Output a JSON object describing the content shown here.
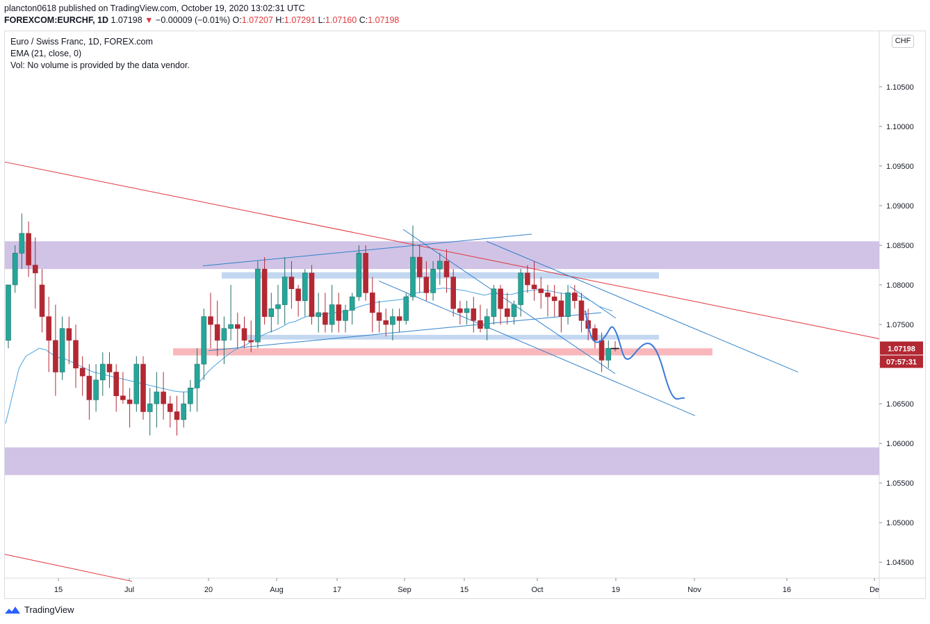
{
  "header": {
    "publisher": "plancton0618 published on TradingView.com, October 19, 2020 13:02:31 UTC",
    "symbol": "FOREXCOM:EURCHF, 1D",
    "last": "1.07198",
    "change_arrow": "▼",
    "change": "−0.00009 (−0.01%)",
    "o_label": "O:",
    "o_value": "1.07207",
    "h_label": "H:",
    "h_value": "1.07291",
    "l_label": "L:",
    "l_value": "1.07160",
    "c_label": "C:",
    "c_value": "1.07198"
  },
  "legend": {
    "title": "Euro / Swiss Franc, 1D, FOREX.com",
    "ema": "EMA (21, close, 0)",
    "volume": "Vol: No volume is provided by the data vendor."
  },
  "currency_badge": "CHF",
  "price_label": "1.07198",
  "countdown_label": "07:57:31",
  "footer": {
    "brand": "TradingView"
  },
  "colors": {
    "up": "#26a69a",
    "up_body": "#1f6e65",
    "down": "#b22833",
    "zone_purple": "#c9b8e2",
    "zone_blue": "#bcd3f0",
    "zone_red": "#f7b0b4",
    "trend_blue": "#2f80c9",
    "trend_red": "#e0343a",
    "ema": "#4aa3df"
  },
  "chart_data": {
    "type": "candlestick",
    "symbol": "EURCHF",
    "interval": "1D",
    "y_tick_labels": [
      "1.10500",
      "1.10000",
      "1.09500",
      "1.09000",
      "1.08500",
      "1.08000",
      "1.07500",
      "1.07000",
      "1.06500",
      "1.06000",
      "1.05500",
      "1.05000",
      "1.04500"
    ],
    "x_tick_labels": [
      "15",
      "Jul",
      "20",
      "Aug",
      "17",
      "Sep",
      "15",
      "Oct",
      "19",
      "Nov",
      "16",
      "De"
    ],
    "ylim": [
      1.043,
      1.112
    ],
    "candles_ohlc": [
      [
        1.073,
        1.08,
        1.072,
        1.08
      ],
      [
        1.08,
        1.085,
        1.079,
        1.084
      ],
      [
        1.084,
        1.089,
        1.082,
        1.0865
      ],
      [
        1.0865,
        1.088,
        1.081,
        1.0825
      ],
      [
        1.0825,
        1.086,
        1.077,
        1.0815
      ],
      [
        1.08,
        1.082,
        1.074,
        1.076
      ],
      [
        1.076,
        1.0785,
        1.069,
        1.073
      ],
      [
        1.073,
        1.0775,
        1.066,
        1.069
      ],
      [
        1.069,
        1.076,
        1.068,
        1.0745
      ],
      [
        1.0745,
        1.076,
        1.07,
        1.073
      ],
      [
        1.073,
        1.075,
        1.067,
        1.0695
      ],
      [
        1.0695,
        1.071,
        1.066,
        1.0685
      ],
      [
        1.0685,
        1.07,
        1.063,
        1.0655
      ],
      [
        1.0655,
        1.07,
        1.064,
        1.068
      ],
      [
        1.068,
        1.0715,
        1.066,
        1.07
      ],
      [
        1.07,
        1.0715,
        1.067,
        1.069
      ],
      [
        1.069,
        1.07,
        1.064,
        1.066
      ],
      [
        1.066,
        1.069,
        1.065,
        1.0655
      ],
      [
        1.0655,
        1.067,
        1.062,
        1.065
      ],
      [
        1.065,
        1.071,
        1.064,
        1.07
      ],
      [
        1.07,
        1.071,
        1.063,
        1.064
      ],
      [
        1.064,
        1.067,
        1.061,
        1.065
      ],
      [
        1.065,
        1.069,
        1.062,
        1.0665
      ],
      [
        1.0665,
        1.069,
        1.063,
        1.065
      ],
      [
        1.065,
        1.066,
        1.062,
        1.064
      ],
      [
        1.064,
        1.066,
        1.061,
        1.063
      ],
      [
        1.063,
        1.0665,
        1.062,
        1.065
      ],
      [
        1.065,
        1.068,
        1.064,
        1.067
      ],
      [
        1.067,
        1.072,
        1.064,
        1.07
      ],
      [
        1.07,
        1.077,
        1.068,
        1.076
      ],
      [
        1.076,
        1.079,
        1.072,
        1.075
      ],
      [
        1.075,
        1.078,
        1.071,
        1.073
      ],
      [
        1.073,
        1.076,
        1.07,
        1.0745
      ],
      [
        1.0745,
        1.08,
        1.073,
        1.075
      ],
      [
        1.075,
        1.0765,
        1.072,
        1.0745
      ],
      [
        1.0745,
        1.076,
        1.072,
        1.073
      ],
      [
        1.073,
        1.0755,
        1.0715,
        1.0728
      ],
      [
        1.0728,
        1.083,
        1.072,
        1.082
      ],
      [
        1.082,
        1.0835,
        1.075,
        1.076
      ],
      [
        1.076,
        1.079,
        1.074,
        1.077
      ],
      [
        1.077,
        1.08,
        1.075,
        1.0775
      ],
      [
        1.0775,
        1.0835,
        1.075,
        1.081
      ],
      [
        1.081,
        1.083,
        1.077,
        1.0795
      ],
      [
        1.0795,
        1.08,
        1.076,
        1.078
      ],
      [
        1.078,
        1.082,
        1.076,
        1.0815
      ],
      [
        1.0815,
        1.0825,
        1.075,
        1.076
      ],
      [
        1.076,
        1.079,
        1.074,
        1.0765
      ],
      [
        1.0765,
        1.079,
        1.074,
        1.075
      ],
      [
        1.075,
        1.08,
        1.074,
        1.0775
      ],
      [
        1.0775,
        1.079,
        1.074,
        1.0755
      ],
      [
        1.0755,
        1.0775,
        1.074,
        1.0768
      ],
      [
        1.0768,
        1.079,
        1.075,
        1.0785
      ],
      [
        1.0785,
        1.085,
        1.078,
        1.084
      ],
      [
        1.084,
        1.085,
        1.078,
        1.079
      ],
      [
        1.079,
        1.081,
        1.074,
        1.0765
      ],
      [
        1.0765,
        1.078,
        1.074,
        1.0755
      ],
      [
        1.0755,
        1.077,
        1.0735,
        1.075
      ],
      [
        1.075,
        1.077,
        1.073,
        1.076
      ],
      [
        1.076,
        1.077,
        1.074,
        1.0755
      ],
      [
        1.0755,
        1.079,
        1.075,
        1.0785
      ],
      [
        1.0785,
        1.0875,
        1.078,
        1.0835
      ],
      [
        1.0835,
        1.085,
        1.079,
        1.081
      ],
      [
        1.081,
        1.083,
        1.078,
        1.079
      ],
      [
        1.079,
        1.083,
        1.078,
        1.082
      ],
      [
        1.082,
        1.084,
        1.08,
        1.083
      ],
      [
        1.083,
        1.0845,
        1.079,
        1.081
      ],
      [
        1.081,
        1.082,
        1.076,
        1.077
      ],
      [
        1.077,
        1.078,
        1.075,
        1.0765
      ],
      [
        1.0765,
        1.078,
        1.075,
        1.077
      ],
      [
        1.077,
        1.0785,
        1.074,
        1.0755
      ],
      [
        1.0755,
        1.0775,
        1.074,
        1.0745
      ],
      [
        1.0745,
        1.077,
        1.073,
        1.076
      ],
      [
        1.076,
        1.08,
        1.075,
        1.0795
      ],
      [
        1.0795,
        1.08,
        1.075,
        1.077
      ],
      [
        1.077,
        1.079,
        1.075,
        1.076
      ],
      [
        1.076,
        1.078,
        1.075,
        1.0775
      ],
      [
        1.0775,
        1.082,
        1.076,
        1.0815
      ],
      [
        1.0815,
        1.0825,
        1.079,
        1.08
      ],
      [
        1.08,
        1.083,
        1.078,
        1.0795
      ],
      [
        1.0795,
        1.081,
        1.077,
        1.079
      ],
      [
        1.079,
        1.08,
        1.076,
        1.0785
      ],
      [
        1.0785,
        1.08,
        1.076,
        1.078
      ],
      [
        1.078,
        1.079,
        1.074,
        1.076
      ],
      [
        1.076,
        1.08,
        1.075,
        1.079
      ],
      [
        1.079,
        1.08,
        1.077,
        1.078
      ],
      [
        1.078,
        1.079,
        1.074,
        1.0755
      ],
      [
        1.0755,
        1.077,
        1.073,
        1.0745
      ],
      [
        1.0745,
        1.075,
        1.072,
        1.073
      ],
      [
        1.073,
        1.074,
        1.069,
        1.0705
      ],
      [
        1.0705,
        1.073,
        1.0695,
        1.072
      ],
      [
        1.072,
        1.0729,
        1.0716,
        1.07198
      ]
    ],
    "ema_21": [
      1.0625,
      1.066,
      1.0695,
      1.071,
      1.0715,
      1.072,
      1.0718,
      1.0712,
      1.0708,
      1.0706,
      1.0702,
      1.0698,
      1.0694,
      1.069,
      1.0688,
      1.0686,
      1.0684,
      1.0682,
      1.068,
      1.0678,
      1.0676,
      1.0674,
      1.0672,
      1.067,
      1.0668,
      1.0666,
      1.0665,
      1.0665,
      1.067,
      1.068,
      1.069,
      1.0698,
      1.0705,
      1.0712,
      1.0718,
      1.0722,
      1.0726,
      1.0731,
      1.0736,
      1.074,
      1.0743,
      1.0747,
      1.0752,
      1.0754,
      1.0758,
      1.0761,
      1.0762,
      1.0763,
      1.0764,
      1.0765,
      1.0766,
      1.0768,
      1.0771,
      1.0774,
      1.0776,
      1.0778,
      1.0779,
      1.078,
      1.0781,
      1.0782,
      1.0788,
      1.079,
      1.0791,
      1.0793,
      1.0795,
      1.0796,
      1.0795,
      1.0794,
      1.0793,
      1.0791,
      1.0789,
      1.0787,
      1.0789,
      1.0789,
      1.0788,
      1.0788,
      1.079,
      1.0792,
      1.0793,
      1.0794,
      1.0793,
      1.0792,
      1.079,
      1.0789,
      1.0788,
      1.0786,
      1.0783,
      1.0779,
      1.0773,
      1.077,
      1.0767
    ],
    "zones": [
      {
        "kind": "purple",
        "from": 1.082,
        "to": 1.0855
      },
      {
        "kind": "purple",
        "from": 1.056,
        "to": 1.0595
      },
      {
        "kind": "blue",
        "from": 1.0808,
        "to": 1.0816
      },
      {
        "kind": "blue",
        "from": 1.0731,
        "to": 1.0737
      },
      {
        "kind": "red",
        "from": 1.0711,
        "to": 1.072
      }
    ],
    "trendlines": [
      {
        "color": "red",
        "from_price": 1.0955,
        "to_price": 1.0732
      },
      {
        "color": "red",
        "from_price": 1.046,
        "to_price": 1.0426
      },
      {
        "color": "blue",
        "from_price": 1.0824,
        "to_price": 1.0864
      },
      {
        "color": "blue",
        "from_price": 1.0717,
        "to_price": 1.0765
      },
      {
        "color": "blue",
        "from_price": 1.087,
        "to_price": 1.0688
      },
      {
        "color": "blue",
        "from_price": 1.0805,
        "to_price": 1.0635
      }
    ],
    "last_price": 1.07198,
    "grid": false,
    "price_scale": "right"
  }
}
